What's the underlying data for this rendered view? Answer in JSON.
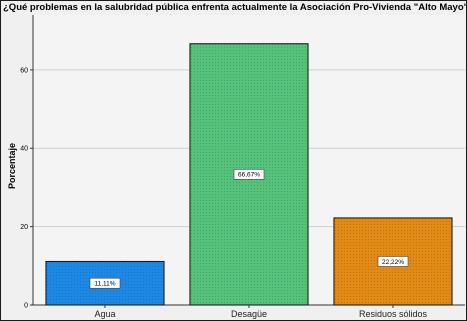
{
  "chart_data": {
    "type": "bar",
    "title": "¿Qué problemas en la salubridad pública enfrenta actualmente la Asociación Pro-Vivienda \"Alto Mayo\"?",
    "xlabel": "",
    "ylabel": "Porcentaje",
    "categories": [
      "Agua",
      "Desagüe",
      "Residuos sólidos"
    ],
    "values": [
      11.11,
      66.67,
      22.22
    ],
    "data_labels": [
      "11,11%",
      "66,67%",
      "22,22%"
    ],
    "colors": [
      "#1e88e5",
      "#55c27c",
      "#e28a16"
    ],
    "ylim": [
      0,
      74
    ],
    "yticks": [
      0,
      20,
      40,
      60
    ],
    "ytick_labels": [
      "0",
      "20",
      "40",
      "60"
    ],
    "grid": true
  }
}
